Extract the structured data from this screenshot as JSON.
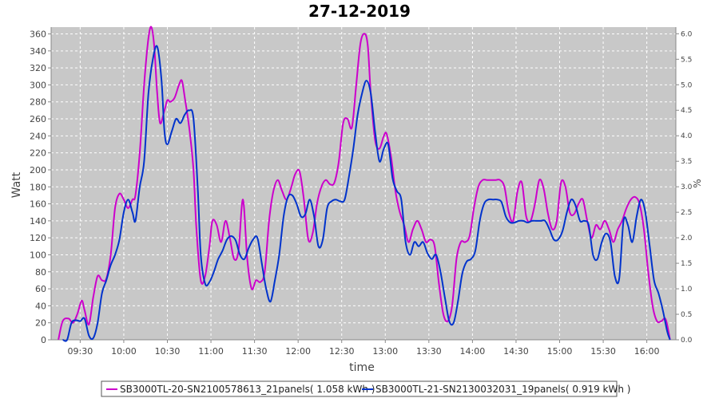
{
  "chart_data": {
    "type": "line",
    "title": "27-12-2019",
    "xlabel": "time",
    "ylabel": "Watt",
    "y2label": "%",
    "xlim": [
      "09:10",
      "16:20"
    ],
    "ylim": [
      0,
      368
    ],
    "y2lim": [
      0,
      6.13
    ],
    "x_ticks": [
      "09:30",
      "10:00",
      "10:30",
      "11:00",
      "11:30",
      "12:00",
      "12:30",
      "13:00",
      "13:30",
      "14:00",
      "14:30",
      "15:00",
      "15:30",
      "16:00"
    ],
    "y_ticks": [
      0,
      20,
      40,
      60,
      80,
      100,
      120,
      140,
      160,
      180,
      200,
      220,
      240,
      260,
      280,
      300,
      320,
      340,
      360
    ],
    "y2_ticks": [
      "0.0",
      "0.5",
      "1.0",
      "1.5",
      "2.0",
      "2.5",
      "3.0",
      "3.5",
      "4.0",
      "4.5",
      "5.0",
      "5.5",
      "6.0"
    ],
    "grid": true,
    "legend_position": "bottom",
    "series": [
      {
        "name": "SB3000TL-20-SN2100578613_21panels( 1.058 kWh )",
        "color": "#cc00cc",
        "x": [
          "09:15",
          "09:18",
          "09:22",
          "09:25",
          "09:28",
          "09:31",
          "09:33",
          "09:36",
          "09:39",
          "09:42",
          "09:45",
          "09:48",
          "09:51",
          "09:54",
          "09:57",
          "10:00",
          "10:03",
          "10:06",
          "10:08",
          "10:11",
          "10:14",
          "10:17",
          "10:19",
          "10:21",
          "10:23",
          "10:25",
          "10:28",
          "10:30",
          "10:32",
          "10:35",
          "10:38",
          "10:40",
          "10:42",
          "10:45",
          "10:48",
          "10:50",
          "10:53",
          "10:56",
          "10:59",
          "11:01",
          "11:04",
          "11:07",
          "11:10",
          "11:13",
          "11:16",
          "11:19",
          "11:22",
          "11:25",
          "11:28",
          "11:31",
          "11:34",
          "11:37",
          "11:40",
          "11:43",
          "11:46",
          "11:49",
          "11:52",
          "11:55",
          "11:58",
          "12:01",
          "12:04",
          "12:07",
          "12:10",
          "12:13",
          "12:16",
          "12:19",
          "12:22",
          "12:25",
          "12:28",
          "12:31",
          "12:34",
          "12:37",
          "12:40",
          "12:43",
          "12:46",
          "12:48",
          "12:50",
          "12:53",
          "12:56",
          "12:59",
          "13:01",
          "13:04",
          "13:07",
          "13:10",
          "13:13",
          "13:16",
          "13:19",
          "13:22",
          "13:25",
          "13:28",
          "13:31",
          "13:34",
          "13:37",
          "13:40",
          "13:43",
          "13:46",
          "13:49",
          "13:52",
          "13:55",
          "13:58",
          "14:01",
          "14:04",
          "14:07",
          "14:10",
          "14:13",
          "14:16",
          "14:19",
          "14:22",
          "14:25",
          "14:28",
          "14:31",
          "14:34",
          "14:37",
          "14:40",
          "14:43",
          "14:46",
          "14:49",
          "14:52",
          "14:55",
          "14:58",
          "15:01",
          "15:04",
          "15:07",
          "15:10",
          "15:13",
          "15:16",
          "15:19",
          "15:22",
          "15:25",
          "15:28",
          "15:31",
          "15:34",
          "15:37",
          "15:40",
          "15:43",
          "15:46",
          "15:49",
          "15:52",
          "15:55",
          "15:58",
          "16:01",
          "16:04",
          "16:07",
          "16:10",
          "16:13",
          "16:16"
        ],
        "y": [
          0,
          22,
          25,
          20,
          30,
          46,
          35,
          18,
          50,
          75,
          70,
          72,
          100,
          155,
          172,
          165,
          155,
          165,
          170,
          220,
          300,
          355,
          368,
          345,
          290,
          255,
          270,
          282,
          280,
          285,
          300,
          305,
          285,
          250,
          200,
          130,
          70,
          75,
          110,
          140,
          135,
          115,
          140,
          120,
          95,
          105,
          165,
          95,
          60,
          70,
          68,
          80,
          140,
          175,
          188,
          175,
          165,
          178,
          195,
          198,
          165,
          118,
          125,
          160,
          180,
          188,
          183,
          185,
          210,
          255,
          260,
          250,
          300,
          350,
          360,
          345,
          290,
          235,
          225,
          240,
          242,
          215,
          175,
          150,
          135,
          115,
          130,
          140,
          130,
          115,
          118,
          110,
          65,
          30,
          22,
          40,
          95,
          115,
          115,
          122,
          155,
          180,
          188,
          188,
          188,
          188,
          188,
          180,
          150,
          140,
          175,
          185,
          145,
          140,
          160,
          188,
          178,
          148,
          130,
          140,
          185,
          180,
          150,
          148,
          160,
          165,
          140,
          120,
          135,
          130,
          140,
          130,
          115,
          130,
          140,
          155,
          165,
          168,
          160,
          130,
          80,
          40,
          22,
          22,
          24,
          0
        ]
      },
      {
        "name": "SB3000TL-21-SN2130032031_19panels( 0.919 kWh )",
        "color": "#0033cc",
        "x": [
          "09:18",
          "09:21",
          "09:24",
          "09:27",
          "09:30",
          "09:33",
          "09:36",
          "09:39",
          "09:42",
          "09:45",
          "09:48",
          "09:51",
          "09:54",
          "09:57",
          "10:00",
          "10:03",
          "10:06",
          "10:08",
          "10:11",
          "10:14",
          "10:17",
          "10:20",
          "10:23",
          "10:26",
          "10:28",
          "10:30",
          "10:33",
          "10:36",
          "10:39",
          "10:42",
          "10:45",
          "10:48",
          "10:51",
          "10:53",
          "10:56",
          "10:59",
          "11:02",
          "11:05",
          "11:08",
          "11:11",
          "11:14",
          "11:17",
          "11:20",
          "11:23",
          "11:26",
          "11:29",
          "11:32",
          "11:35",
          "11:38",
          "11:41",
          "11:44",
          "11:47",
          "11:50",
          "11:53",
          "11:56",
          "11:59",
          "12:02",
          "12:05",
          "12:08",
          "12:11",
          "12:14",
          "12:17",
          "12:20",
          "12:23",
          "12:26",
          "12:29",
          "12:32",
          "12:35",
          "12:38",
          "12:41",
          "12:44",
          "12:47",
          "12:50",
          "12:53",
          "12:56",
          "12:59",
          "13:02",
          "13:05",
          "13:08",
          "13:11",
          "13:14",
          "13:17",
          "13:20",
          "13:23",
          "13:26",
          "13:29",
          "13:32",
          "13:35",
          "13:38",
          "13:41",
          "13:44",
          "13:47",
          "13:50",
          "13:53",
          "13:56",
          "13:59",
          "14:02",
          "14:05",
          "14:08",
          "14:11",
          "14:14",
          "14:17",
          "14:20",
          "14:23",
          "14:26",
          "14:29",
          "14:32",
          "14:35",
          "14:38",
          "14:41",
          "14:44",
          "14:47",
          "14:50",
          "14:53",
          "14:56",
          "14:59",
          "15:02",
          "15:05",
          "15:08",
          "15:11",
          "15:14",
          "15:17",
          "15:20",
          "15:23",
          "15:26",
          "15:29",
          "15:32",
          "15:35",
          "15:38",
          "15:41",
          "15:44",
          "15:47",
          "15:50",
          "15:53",
          "15:56",
          "15:59",
          "16:02",
          "16:05",
          "16:08",
          "16:11",
          "16:14",
          "16:16"
        ],
        "y": [
          0,
          0,
          20,
          23,
          22,
          25,
          5,
          2,
          20,
          55,
          70,
          88,
          100,
          118,
          150,
          165,
          150,
          140,
          180,
          210,
          290,
          330,
          345,
          305,
          245,
          230,
          245,
          260,
          255,
          265,
          270,
          260,
          175,
          100,
          66,
          68,
          80,
          95,
          105,
          118,
          122,
          117,
          100,
          95,
          108,
          118,
          120,
          90,
          60,
          45,
          70,
          100,
          145,
          168,
          170,
          160,
          145,
          148,
          165,
          145,
          110,
          118,
          155,
          163,
          165,
          163,
          165,
          192,
          225,
          265,
          290,
          305,
          290,
          245,
          210,
          225,
          230,
          190,
          175,
          165,
          115,
          100,
          115,
          110,
          115,
          102,
          95,
          100,
          80,
          50,
          22,
          20,
          45,
          78,
          92,
          95,
          105,
          140,
          160,
          165,
          165,
          165,
          162,
          145,
          138,
          138,
          140,
          140,
          138,
          140,
          140,
          140,
          140,
          130,
          118,
          118,
          128,
          150,
          165,
          158,
          140,
          140,
          135,
          100,
          95,
          115,
          125,
          115,
          75,
          72,
          140,
          135,
          115,
          145,
          165,
          150,
          110,
          70,
          55,
          35,
          10,
          0
        ]
      }
    ]
  }
}
